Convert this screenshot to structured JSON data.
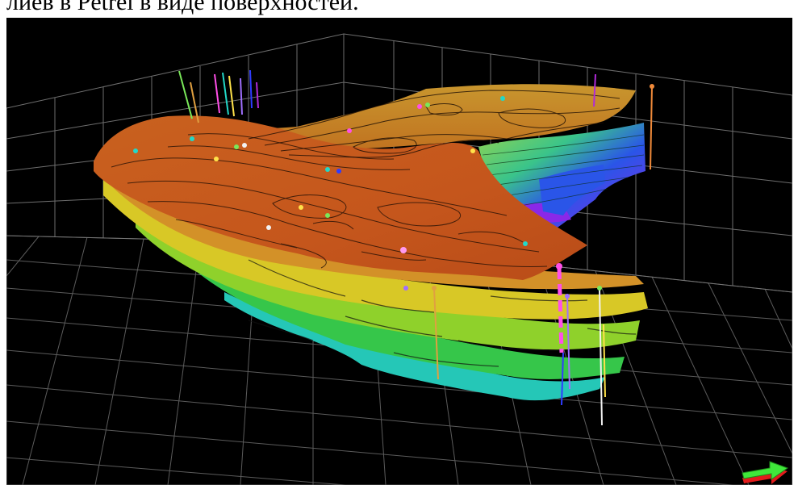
{
  "document": {
    "caption": "лиев в Petrel в виде поверхностей."
  },
  "viewer": {
    "background": "#000000",
    "grid_color": "#8a8a8a",
    "surface_colors": {
      "top_surface": "#c5561c",
      "upper_ridge": "#c88c2a",
      "mid_yellow": "#d8c826",
      "lime": "#8fd12b",
      "green": "#36c64a",
      "cyan": "#25c7b7",
      "blue": "#2a55e8",
      "violet": "#8a28e8"
    },
    "well_colors": [
      "#e0a040",
      "#ff4fe8",
      "#a070ff",
      "#f2f2f2",
      "#2f3cff",
      "#ffe24a",
      "#22d8c8",
      "#f08a3a",
      "#7ae85a",
      "#b02ad8"
    ],
    "nav_icon": "navigation-arrow-icon",
    "nav_icon_colors": {
      "top": "#3fe83a",
      "side": "#e31c1c"
    }
  }
}
